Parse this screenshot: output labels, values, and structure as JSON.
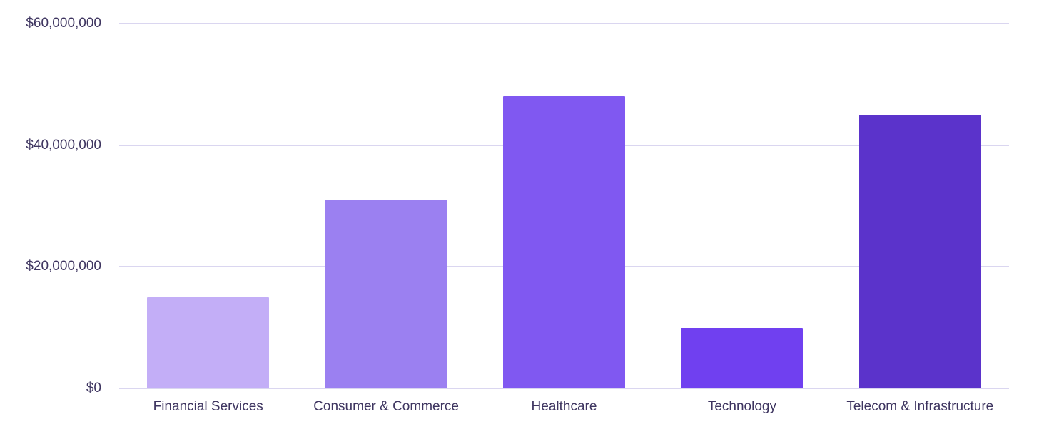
{
  "chart_data": {
    "type": "bar",
    "title": "",
    "xlabel": "",
    "ylabel": "",
    "categories": [
      "Financial Services",
      "Consumer & Commerce",
      "Healthcare",
      "Technology",
      "Telecom & Infrastructure"
    ],
    "values": [
      15000000,
      31000000,
      48000000,
      10000000,
      45000000
    ],
    "bar_colors": [
      "#c3aef7",
      "#9b80f1",
      "#8058f1",
      "#7040f0",
      "#5b33cb"
    ],
    "y_ticks": [
      {
        "value": 0,
        "label": "$0"
      },
      {
        "value": 20000000,
        "label": "$20,000,000"
      },
      {
        "value": 40000000,
        "label": "$40,000,000"
      },
      {
        "value": 60000000,
        "label": "$60,000,000"
      }
    ],
    "ylim": [
      0,
      60000000
    ],
    "grid": "horizontal",
    "legend": "none",
    "gridline_color": "#dad6f0",
    "axis_text_color": "#3e3560"
  }
}
